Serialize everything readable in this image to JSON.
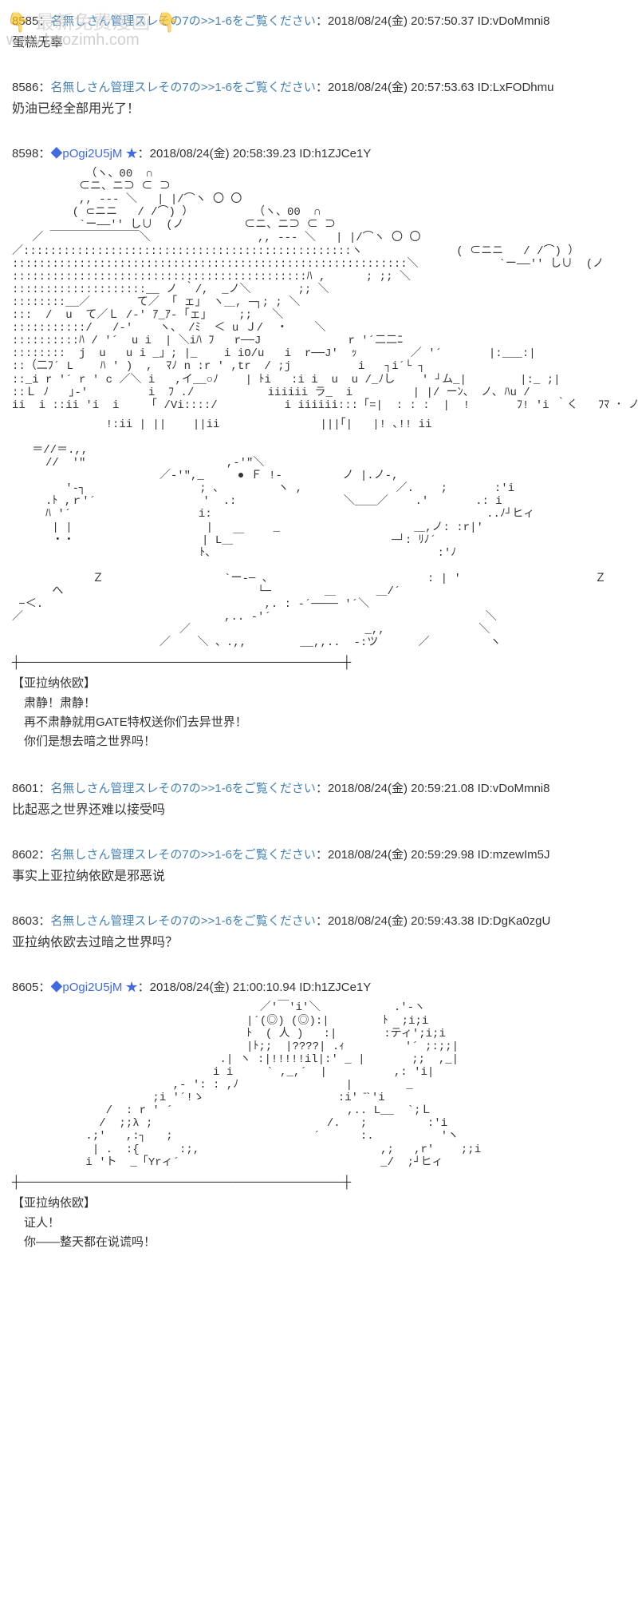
{
  "watermark": {
    "text1": "👇 最新免费漫画 👇",
    "text2": "www.baozimh.com"
  },
  "posts": [
    {
      "num": "8585",
      "name": "名無しさん管理スレその7の>>1-6をご覧ください",
      "date": "2018/08/24(金) 20:57:50.37",
      "id": "ID:vDoMmni8",
      "body": "蛋糕无辜"
    },
    {
      "num": "8586",
      "name": "名無しさん管理スレその7の>>1-6をご覧ください",
      "date": "2018/08/24(金) 20:57:53.63",
      "id": "ID:LxFODhmu",
      "body": "奶油已经全部用光了！"
    },
    {
      "num": "8598",
      "trip": "◆pOgi2U5jM ★",
      "date": "2018/08/24(金) 20:58:39.23",
      "id": "ID:h1ZJCe1Y",
      "hasAsciiArt": true
    },
    {
      "num": "8601",
      "name": "名無しさん管理スレその7の>>1-6をご覧ください",
      "date": "2018/08/24(金) 20:59:21.08",
      "id": "ID:vDoMmni8",
      "body": "比起恶之世界还难以接受吗"
    },
    {
      "num": "8602",
      "name": "名無しさん管理スレその7の>>1-6をご覧ください",
      "date": "2018/08/24(金) 20:59:29.98",
      "id": "ID:mzewIm5J",
      "body": "事实上亚拉纳依欧是邪恶说"
    },
    {
      "num": "8603",
      "name": "名無しさん管理スレその7の>>1-6をご覧ください",
      "date": "2018/08/24(金) 20:59:43.38",
      "id": "ID:DgKa0zgU",
      "body": "亚拉纳依欧去过暗之世界吗？"
    },
    {
      "num": "8605",
      "trip": "◆pOgi2U5jM ★",
      "date": "2018/08/24(金) 21:00:10.94",
      "id": "ID:h1ZJCe1Y",
      "hasAsciiArt": true
    }
  ],
  "panel1": {
    "charName": "【亚拉纳依欧】",
    "line1": "肃静！肃静！",
    "line2": "再不肃静就用GATE特权送你们去异世界！",
    "line3": "你们是想去暗之世界吗！"
  },
  "panel2": {
    "charName": "【亚拉纳依欧】",
    "line1": "证人！",
    "line2": "你——整天都在说谎吗！"
  },
  "aa1": "           （ヽ、00  ∩\n          ⊂ニ、ニ⊃ ⊂ ⊃\n          ,, -‐- ＼   | |/⌒ヽ 〇 〇\n         ( ⊂ニニ   / /⌒) ）         （ヽ、00  ∩\n          `ー――'′ し∪  (ノ         ⊂ニ、ニ⊃ ⊂ ⊃\n   ／ ￣￣￣￣￣￣￣￣＼                ,, -‐- ＼   | |/⌒ヽ 〇 〇\n／:::::::::::::::::::::::::::::::::::::::::::::::::ヽ              ( ⊂ニニ   / /⌒) ）\n:::::::::::::::::::::::::::::::::::::::::::::::::::::::::::＼            `ー――'′ し∪  (ノ\n::::::::::::::::::::::::::::::::::::::::::::ﾊ ,      ; ;; ＼\n::::::::::::::::::::__ ノ ｀/,  _ノ＼       ;; ＼\n::::::::__／       て／ 「 ェ」 ヽ＿, ─┐; ; ＼\n:::  /  u  て／Ｌ /-' ｱ_ｱ- ｢ェ」    ;;   ＼\n:::::::::::/   /-'    ヽ、 /ﾐ  ＜ u Ｊ/  ・    ＼\n::::::::::ﾊ / '´  u i  | ＼iﾊ ﾌ   r──J             r '´二二ﾆ\n::::::::  j  u   u i _」; |_    i iO/u   i  r──J'  ｯ        ／ '´       |:___:|\n::（二ﾌ´ L    ﾊ ' )  ,  ﾏﾉ n :r ' ,tr  / ;j          i   ┐i´└ ┐\n::_i r '´ r ' c ／＼ i   ,イ__○ﾉ    | ﾄi   :i i  u  u /_ﾉし    ' ┘ム_|        |:_ ;|\n::Ｌ ﾉ   ｣-'         i  ﾌ ./           iiiiii ラ_  i         | |/ ーﾝ、 ノ､ ﾊu /\nii  i ::ii 'i  i    「 /Vi::::/          i iiiiii:::「=|  : : :  |  !       ﾌ! 'i ｀く   ﾌﾏ ･ ノ",
  "aa2": "              !:ii | ||    ||ii               |||｢|   |! ､!! ii\n\n   ＝//＝.,,\n     //  '\"                     ,-'\"＼\n                      ／-'\",_     ● Ｆ !-         ノ |.ノ-,\n        '-┐                 ; 、        ヽ ,              ／.    ;       :'i\n     .ﾄ ,ｒ'´                '  .:                ＼＿＿／    .'       .: i\n     ﾊ '´                   i:                                         ..ﾉ┘ヒィ\n      | |                    |         _                    ＿,ノ: :r|'\n      ・・                   | L＿￣                      ─┘: ﾘﾉ´\n                            ﾄ、                                 :'ﾉ\n\n            Ｚ                  `ー-─ 、                       : | '                    Ｚ\n      へ                             └─        ＿      ＿/´\n −＜.                                 ,. : -´──── '´＼\n／                              ,.. -'´                                ＼\n                         ／                          _,,              ＼\n                      ／    ＼ 、.,,        __,,..  -:ツ      ／         ヽ",
  "aa3": "                                     ／'￣'i'＼           .'-ヽ\n                                   |´(◎) (◎):|        ﾄ  ;i;i\n                                   ﾄ  ( 人 )   :|       :ティ';i;i\n                                   |ﾄ;;  |????| .ｨ         '´ ;:;;|\n                               .| ヽ :|!!!!!il|:' _ |       ;;  ,_|\n                              i i     ` ,_,´  |          ,: 'i|\n                        ,- ': : ,ﾉ                |        _\n                     ;i '´!ゝ                    :i' ̄`'i\n              /  : r ' ´                          ,.. L__  `;Ｌ\n             /  ;;λ ;                          /.   ;         :'i\n           .;'   ,:┐   ;                     ´      :.          'ヽ\n            | .  :{      :;,                           ,;   ,r'    ;;i\n           i 'ト  _「Yrィ´                              _/  ;┘ヒィ"
}
